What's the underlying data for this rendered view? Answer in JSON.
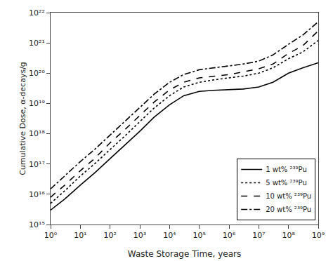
{
  "chart_data": {
    "type": "line",
    "xlabel": "Waste Storage Time, years",
    "ylabel": "Cumulative Dose, α-decays/g",
    "log": true,
    "grid": false,
    "legend": "lower right",
    "background_color": "#ffffff",
    "xlim": [
      1,
      1000000000.0
    ],
    "ylim": [
      1000000000000000.0,
      1e+22
    ],
    "xticks": [
      {
        "value": 1,
        "label": "10⁰"
      },
      {
        "value": 10,
        "label": "10¹"
      },
      {
        "value": 100,
        "label": "10²"
      },
      {
        "value": 1000,
        "label": "10³"
      },
      {
        "value": 10000,
        "label": "10⁴"
      },
      {
        "value": 100000,
        "label": "10⁵"
      },
      {
        "value": 1000000,
        "label": "10⁶"
      },
      {
        "value": 10000000,
        "label": "10⁷"
      },
      {
        "value": 100000000,
        "label": "10⁸"
      },
      {
        "value": 1000000000,
        "label": "10⁹"
      }
    ],
    "yticks": [
      {
        "value": 1000000000000000.0,
        "label": "10¹⁵"
      },
      {
        "value": 1e+16,
        "label": "10¹⁶"
      },
      {
        "value": 1e+17,
        "label": "10¹⁷"
      },
      {
        "value": 1e+18,
        "label": "10¹⁸"
      },
      {
        "value": 1e+19,
        "label": "10¹⁹"
      },
      {
        "value": 1e+20,
        "label": "10²⁰"
      },
      {
        "value": 1e+21,
        "label": "10²¹"
      },
      {
        "value": 1e+22,
        "label": "10²²"
      }
    ],
    "x": [
      1,
      3,
      10,
      30,
      100,
      300,
      1000,
      3000,
      10000,
      30000,
      100000,
      300000,
      1000000,
      3000000,
      10000000,
      30000000,
      100000000,
      300000000,
      1000000000
    ],
    "series": [
      {
        "name": "1 wt% ²³⁹Pu",
        "color": "#000000",
        "line_style": "solid",
        "values": [
          3000000000000000.0,
          7000000000000000.0,
          2e+16,
          5e+16,
          1.5e+17,
          4e+17,
          1.2e+18,
          3.5e+18,
          9e+18,
          1.8e+19,
          2.5e+19,
          2.7e+19,
          2.8e+19,
          3e+19,
          3.5e+19,
          5e+19,
          1e+20,
          1.5e+20,
          2.2e+20
        ]
      },
      {
        "name": "5 wt% ²³⁹Pu",
        "color": "#000000",
        "line_style": "dotted",
        "values": [
          5000000000000000.0,
          1.3e+16,
          4e+16,
          1e+17,
          3e+17,
          8e+17,
          2.5e+18,
          7e+18,
          1.8e+19,
          3.5e+19,
          5e+19,
          6e+19,
          7e+19,
          8e+19,
          1e+20,
          1.5e+20,
          3e+20,
          5e+20,
          1.2e+21
        ]
      },
      {
        "name": "10 wt% ²³⁹Pu",
        "color": "#000000",
        "line_style": "dashed",
        "values": [
          8000000000000000.0,
          2e+16,
          6e+16,
          1.5e+17,
          5e+17,
          1.3e+18,
          4e+18,
          1.1e+19,
          2.8e+19,
          5e+19,
          7e+19,
          8e+19,
          9e+19,
          1.1e+20,
          1.4e+20,
          2e+20,
          4.5e+20,
          8e+20,
          2.5e+21
        ]
      },
      {
        "name": "20 wt% ²³⁹Pu",
        "color": "#000000",
        "line_style": "dashdot",
        "values": [
          1.5e+16,
          4e+16,
          1.2e+17,
          3e+17,
          9e+17,
          2.5e+18,
          7.5e+18,
          2e+19,
          5e+19,
          9e+19,
          1.3e+20,
          1.5e+20,
          1.7e+20,
          2e+20,
          2.5e+20,
          4e+20,
          9e+20,
          1.8e+21,
          5e+21
        ]
      }
    ]
  }
}
